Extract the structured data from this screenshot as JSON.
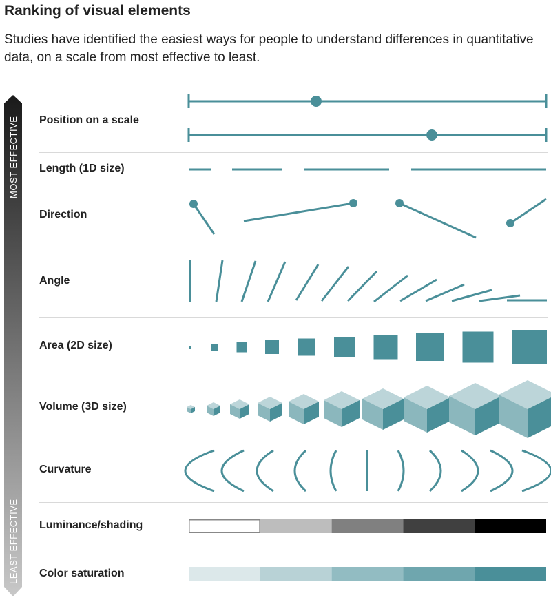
{
  "title": "Ranking of visual elements",
  "subtitle": "Studies have identified the easiest ways for people to understand differences in quantitative data, on a scale from most effective to least.",
  "scale": {
    "top_label": "MOST EFFECTIVE",
    "bottom_label": "LEAST EFFECTIVE"
  },
  "colors": {
    "accent": "#4a8f99",
    "cube_top": "#bcd5d9",
    "cube_left": "#8bb7bd",
    "cube_right": "#4a8f99",
    "label": "#222222",
    "divider": "#d9d9d9"
  },
  "rows": [
    {
      "id": "position",
      "label": "Position on a scale"
    },
    {
      "id": "length",
      "label": "Length (1D size)"
    },
    {
      "id": "direction",
      "label": "Direction"
    },
    {
      "id": "angle",
      "label": "Angle"
    },
    {
      "id": "area",
      "label": "Area (2D size)"
    },
    {
      "id": "volume",
      "label": "Volume (3D size)"
    },
    {
      "id": "curvature",
      "label": "Curvature"
    },
    {
      "id": "luminance",
      "label": "Luminance/shading"
    },
    {
      "id": "saturation",
      "label": "Color saturation"
    }
  ],
  "luminance_steps": [
    "#ffffff",
    "#bdbdbd",
    "#808080",
    "#404040",
    "#000000"
  ],
  "saturation_steps": [
    "#dce8ea",
    "#b8d2d6",
    "#92bcc2",
    "#6fa6ae",
    "#4a8f99"
  ]
}
